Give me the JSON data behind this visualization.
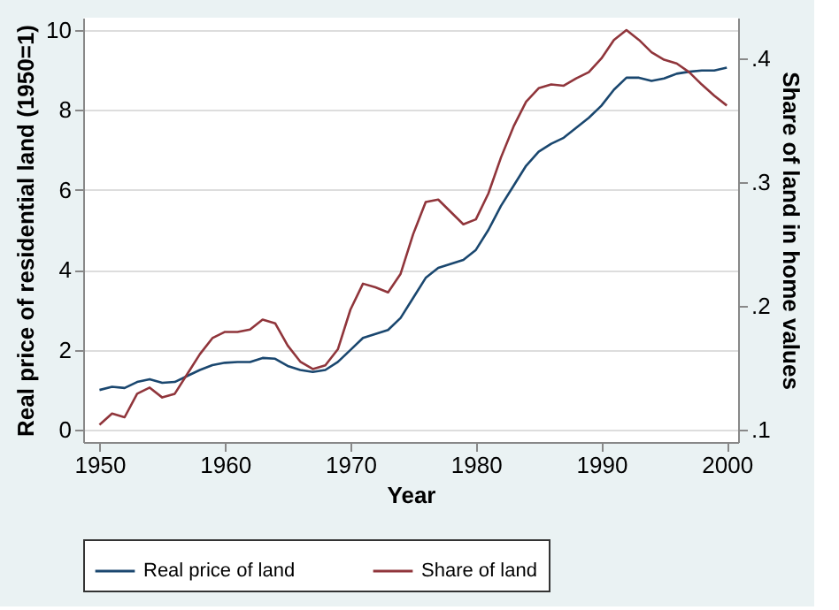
{
  "chart_data": {
    "type": "line",
    "xlabel": "Year",
    "ylabel": "Real price of residential land (1950=1)",
    "y2label": "Share of land in home values",
    "x": [
      1950,
      1951,
      1952,
      1953,
      1954,
      1955,
      1956,
      1957,
      1958,
      1959,
      1960,
      1961,
      1962,
      1963,
      1964,
      1965,
      1966,
      1967,
      1968,
      1969,
      1970,
      1971,
      1972,
      1973,
      1974,
      1975,
      1976,
      1977,
      1978,
      1979,
      1980,
      1981,
      1982,
      1983,
      1984,
      1985,
      1986,
      1987,
      1988,
      1989,
      1990,
      1991,
      1992,
      1993,
      1994,
      1995,
      1996,
      1997,
      1998,
      1999,
      2000
    ],
    "series": [
      {
        "name": "Real price of land",
        "color": "#1a476f",
        "values": [
          1.0,
          1.08,
          1.05,
          1.2,
          1.27,
          1.18,
          1.2,
          1.35,
          1.5,
          1.62,
          1.68,
          1.7,
          1.7,
          1.8,
          1.78,
          1.6,
          1.5,
          1.45,
          1.5,
          1.7,
          2.0,
          2.3,
          2.4,
          2.5,
          2.8,
          3.3,
          3.8,
          4.05,
          4.15,
          4.25,
          4.5,
          5.0,
          5.6,
          6.1,
          6.6,
          6.95,
          7.15,
          7.3,
          7.55,
          7.8,
          8.1,
          8.5,
          8.8,
          8.8,
          8.72,
          8.78,
          8.9,
          8.95,
          8.98,
          8.98,
          9.05
        ]
      },
      {
        "name": "Share of land",
        "color": "#90353b",
        "axis": "y2",
        "values": [
          0.104,
          0.113,
          0.11,
          0.129,
          0.134,
          0.126,
          0.129,
          0.145,
          0.161,
          0.174,
          0.179,
          0.179,
          0.181,
          0.189,
          0.186,
          0.168,
          0.155,
          0.149,
          0.152,
          0.165,
          0.197,
          0.218,
          0.215,
          0.211,
          0.226,
          0.258,
          0.284,
          0.286,
          0.276,
          0.266,
          0.27,
          0.291,
          0.32,
          0.345,
          0.365,
          0.376,
          0.379,
          0.378,
          0.384,
          0.389,
          0.4,
          0.415,
          0.423,
          0.415,
          0.405,
          0.399,
          0.396,
          0.389,
          0.379,
          0.37,
          0.362
        ]
      }
    ],
    "xlim": [
      1948.7,
      2000.9
    ],
    "xticks": [
      1950,
      1960,
      1970,
      1980,
      1990,
      2000
    ],
    "ylim": [
      -0.3,
      10.3
    ],
    "yticks": [
      0,
      2,
      4,
      6,
      8,
      10
    ],
    "y2lim": [
      0.09,
      0.433
    ],
    "y2ticks": [
      {
        "value": 0.1,
        "label": ".1"
      },
      {
        "value": 0.2,
        "label": ".2"
      },
      {
        "value": 0.3,
        "label": ".3"
      },
      {
        "value": 0.4,
        "label": ".4"
      }
    ],
    "grid": "y",
    "legend": "bottom",
    "line_style": "solid",
    "marker": "none"
  }
}
